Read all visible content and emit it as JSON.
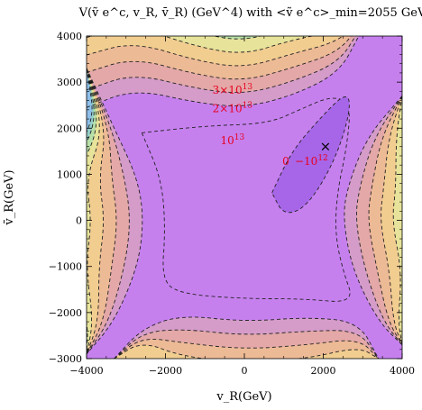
{
  "chart_data": {
    "type": "contour",
    "title": "V(ṽ e^c, v_R, v̄_R) (GeV^4) with <ṽ e^c>_min=2055 GeV",
    "xlabel": "v_R(GeV)",
    "ylabel": "v̄_R(GeV)",
    "xlim": [
      -4000,
      4000
    ],
    "ylim": [
      -3000,
      4000
    ],
    "xticks": [
      "−4000",
      "−2000",
      "0",
      "2000",
      "4000"
    ],
    "yticks": [
      "−3000",
      "−2000",
      "−1000",
      "0",
      "1000",
      "2000",
      "3000",
      "4000"
    ],
    "minimum_marker": {
      "x": 2055,
      "y": 1600,
      "symbol": "×"
    },
    "contour_labels": [
      {
        "text": "3×10",
        "exp": "13",
        "x": -300,
        "y": 2750
      },
      {
        "text": "2×10",
        "exp": "13",
        "x": -300,
        "y": 2350
      },
      {
        "text": "10",
        "exp": "13",
        "x": -300,
        "y": 1650
      },
      {
        "text": "0",
        "exp": "",
        "x": 1050,
        "y": 1200
      },
      {
        "text": "−10",
        "exp": "12",
        "x": 1700,
        "y": 1200
      }
    ],
    "colors": {
      "plateau": "#c680ee",
      "valley": "#a766e8",
      "band1": "#d59cc9",
      "band2": "#e3a8a7",
      "band3": "#edba96",
      "band4": "#f1cd90",
      "band5": "#e7e39a",
      "band6": "#b7dfa8",
      "band7": "#94cec9",
      "band8": "#8dbfe9",
      "annotation": "#e8001f"
    }
  }
}
